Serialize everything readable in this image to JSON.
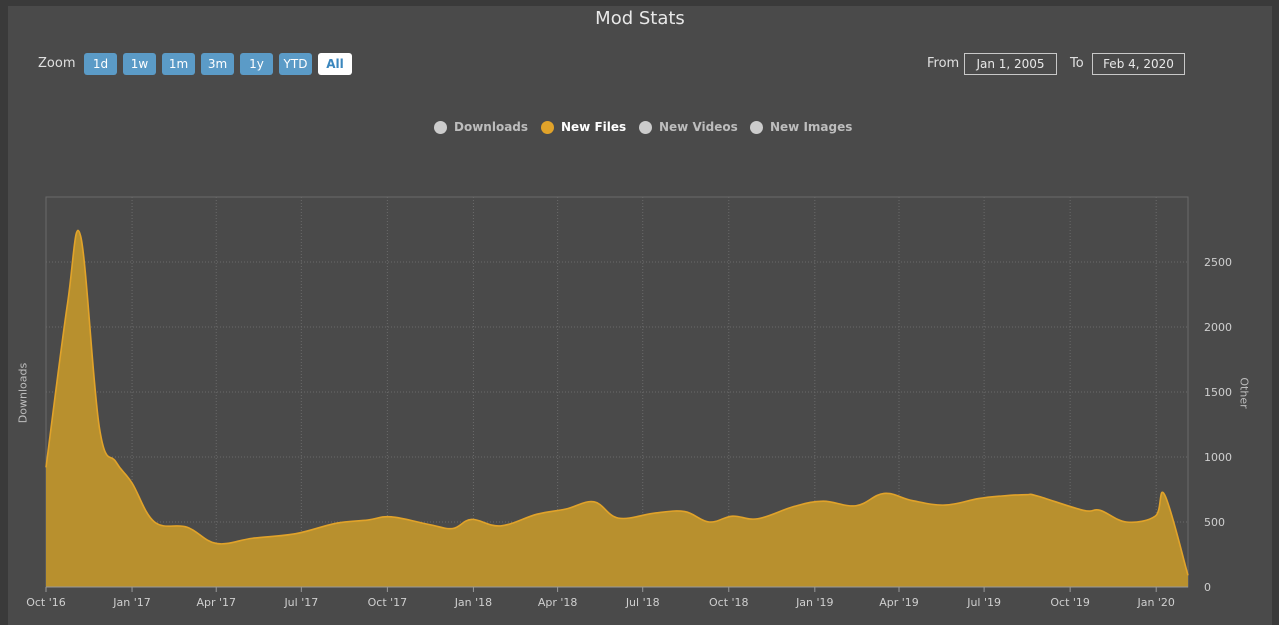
{
  "title": "Mod Stats",
  "zoom": {
    "label": "Zoom",
    "buttons": [
      "1d",
      "1w",
      "1m",
      "3m",
      "1y",
      "YTD",
      "All"
    ],
    "active": "All"
  },
  "range": {
    "from_label": "From",
    "from_value": "Jan 1, 2005",
    "to_label": "To",
    "to_value": "Feb 4, 2020"
  },
  "legend": [
    {
      "name": "Downloads",
      "color": "#cccccc",
      "active": false
    },
    {
      "name": "New Files",
      "color": "#e1a32a",
      "active": true
    },
    {
      "name": "New Videos",
      "color": "#cccccc",
      "active": false
    },
    {
      "name": "New Images",
      "color": "#cccccc",
      "active": false
    }
  ],
  "colors": {
    "background": "#4a4a4a",
    "series_line": "#e1a32a",
    "series_fill": "#b8902e",
    "grid": "#6a6a6a"
  },
  "chart_data": {
    "type": "area",
    "title": "Mod Stats",
    "ylabel_left": "Downloads",
    "ylabel_right": "Other",
    "x_tick_labels": [
      "Oct '16",
      "Jan '17",
      "Apr '17",
      "Jul '17",
      "Oct '17",
      "Jan '18",
      "Apr '18",
      "Jul '18",
      "Oct '18",
      "Jan '19",
      "Apr '19",
      "Jul '19",
      "Oct '19",
      "Jan '20"
    ],
    "y_ticks": [
      0,
      500,
      1000,
      1500,
      2000,
      2500
    ],
    "ylim": [
      0,
      3000
    ],
    "xlim": [
      "2016-10-01",
      "2020-02-04"
    ],
    "grid": true,
    "legend_placement": "top-center",
    "series": [
      {
        "name": "New Files",
        "x": [
          "2016-10-01",
          "2016-10-24",
          "2016-11-07",
          "2016-11-27",
          "2016-12-15",
          "2017-01-01",
          "2017-01-25",
          "2017-03-01",
          "2017-04-01",
          "2017-05-10",
          "2017-06-25",
          "2017-08-07",
          "2017-09-10",
          "2017-10-05",
          "2017-11-15",
          "2017-12-10",
          "2017-12-30",
          "2018-01-30",
          "2018-03-10",
          "2018-04-10",
          "2018-05-10",
          "2018-06-05",
          "2018-07-15",
          "2018-08-15",
          "2018-09-10",
          "2018-10-05",
          "2018-11-01",
          "2018-12-10",
          "2019-01-10",
          "2019-02-14",
          "2019-03-16",
          "2019-04-15",
          "2019-05-20",
          "2019-06-25",
          "2019-07-20",
          "2019-08-15",
          "2019-08-27",
          "2019-10-15",
          "2019-11-02",
          "2019-11-30",
          "2019-12-31",
          "2020-01-10",
          "2020-02-04"
        ],
        "values": [
          920,
          2180,
          2700,
          1230,
          960,
          800,
          500,
          460,
          335,
          375,
          410,
          490,
          515,
          540,
          480,
          450,
          520,
          470,
          560,
          600,
          655,
          530,
          570,
          580,
          500,
          545,
          525,
          620,
          660,
          625,
          720,
          665,
          630,
          680,
          700,
          710,
          700,
          590,
          590,
          500,
          545,
          710,
          90
        ]
      }
    ]
  }
}
